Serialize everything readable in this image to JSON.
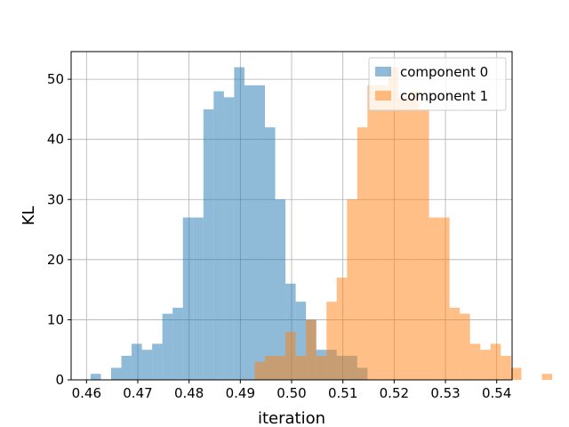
{
  "chart_data": {
    "type": "histogram",
    "xlabel": "iteration",
    "ylabel": "KL",
    "xlim": [
      0.457,
      0.543
    ],
    "ylim": [
      0,
      54.6
    ],
    "xticks": [
      0.46,
      0.47,
      0.48,
      0.49,
      0.5,
      0.51,
      0.52,
      0.53,
      0.54
    ],
    "xtick_labels": [
      "0.46",
      "0.47",
      "0.48",
      "0.49",
      "0.50",
      "0.51",
      "0.52",
      "0.53",
      "0.54"
    ],
    "yticks": [
      0,
      10,
      20,
      30,
      40,
      50
    ],
    "ytick_labels": [
      "0",
      "10",
      "20",
      "30",
      "40",
      "50"
    ],
    "grid": true,
    "legend_position": "top-right",
    "bar_alpha": 0.5,
    "series": [
      {
        "name": "component 0",
        "color": "#1f77b4",
        "bins": [
          [
            0.4608,
            0.4628,
            1
          ],
          [
            0.4628,
            0.4648,
            0
          ],
          [
            0.4648,
            0.4668,
            2
          ],
          [
            0.4668,
            0.4688,
            4
          ],
          [
            0.4688,
            0.4708,
            6
          ],
          [
            0.4708,
            0.4728,
            5
          ],
          [
            0.4728,
            0.4748,
            6
          ],
          [
            0.4748,
            0.4768,
            11
          ],
          [
            0.4768,
            0.4788,
            12
          ],
          [
            0.4788,
            0.4808,
            27
          ],
          [
            0.4808,
            0.4828,
            27
          ],
          [
            0.4828,
            0.4848,
            45
          ],
          [
            0.4848,
            0.4868,
            48
          ],
          [
            0.4868,
            0.4888,
            47
          ],
          [
            0.4888,
            0.4908,
            52
          ],
          [
            0.4908,
            0.4928,
            49
          ],
          [
            0.4928,
            0.4948,
            49
          ],
          [
            0.4948,
            0.4968,
            42
          ],
          [
            0.4968,
            0.4988,
            30
          ],
          [
            0.4988,
            0.5008,
            16
          ],
          [
            0.5008,
            0.5028,
            13
          ],
          [
            0.5028,
            0.5048,
            10
          ],
          [
            0.5048,
            0.5068,
            5
          ],
          [
            0.5068,
            0.5088,
            5
          ],
          [
            0.5088,
            0.5108,
            4
          ],
          [
            0.5108,
            0.5128,
            4
          ],
          [
            0.5128,
            0.5148,
            2
          ],
          [
            0.5148,
            0.5168,
            0
          ],
          [
            0.5168,
            0.5188,
            0
          ]
        ]
      },
      {
        "name": "component 1",
        "color": "#ff7f0e",
        "bins": [
          [
            0.4928,
            0.4948,
            3
          ],
          [
            0.4948,
            0.4968,
            4
          ],
          [
            0.4968,
            0.4988,
            4
          ],
          [
            0.4988,
            0.5008,
            8
          ],
          [
            0.5008,
            0.5028,
            4
          ],
          [
            0.5028,
            0.5048,
            10
          ],
          [
            0.5048,
            0.5068,
            4
          ],
          [
            0.5068,
            0.5088,
            13
          ],
          [
            0.5088,
            0.5108,
            17
          ],
          [
            0.5108,
            0.5128,
            30
          ],
          [
            0.5128,
            0.5148,
            42
          ],
          [
            0.5148,
            0.5168,
            49
          ],
          [
            0.5168,
            0.5188,
            49
          ],
          [
            0.5188,
            0.5208,
            52
          ],
          [
            0.5208,
            0.5228,
            47
          ],
          [
            0.5228,
            0.5248,
            48
          ],
          [
            0.5248,
            0.5268,
            45
          ],
          [
            0.5268,
            0.5288,
            27
          ],
          [
            0.5288,
            0.5308,
            27
          ],
          [
            0.5308,
            0.5328,
            12
          ],
          [
            0.5328,
            0.5348,
            11
          ],
          [
            0.5348,
            0.5368,
            6
          ],
          [
            0.5368,
            0.5388,
            5
          ],
          [
            0.5388,
            0.5408,
            6
          ],
          [
            0.5408,
            0.5428,
            4
          ],
          [
            0.5428,
            0.5448,
            2
          ],
          [
            0.5448,
            0.5468,
            0
          ],
          [
            0.5468,
            0.5488,
            0
          ],
          [
            0.5488,
            0.5508,
            1
          ]
        ]
      }
    ]
  }
}
